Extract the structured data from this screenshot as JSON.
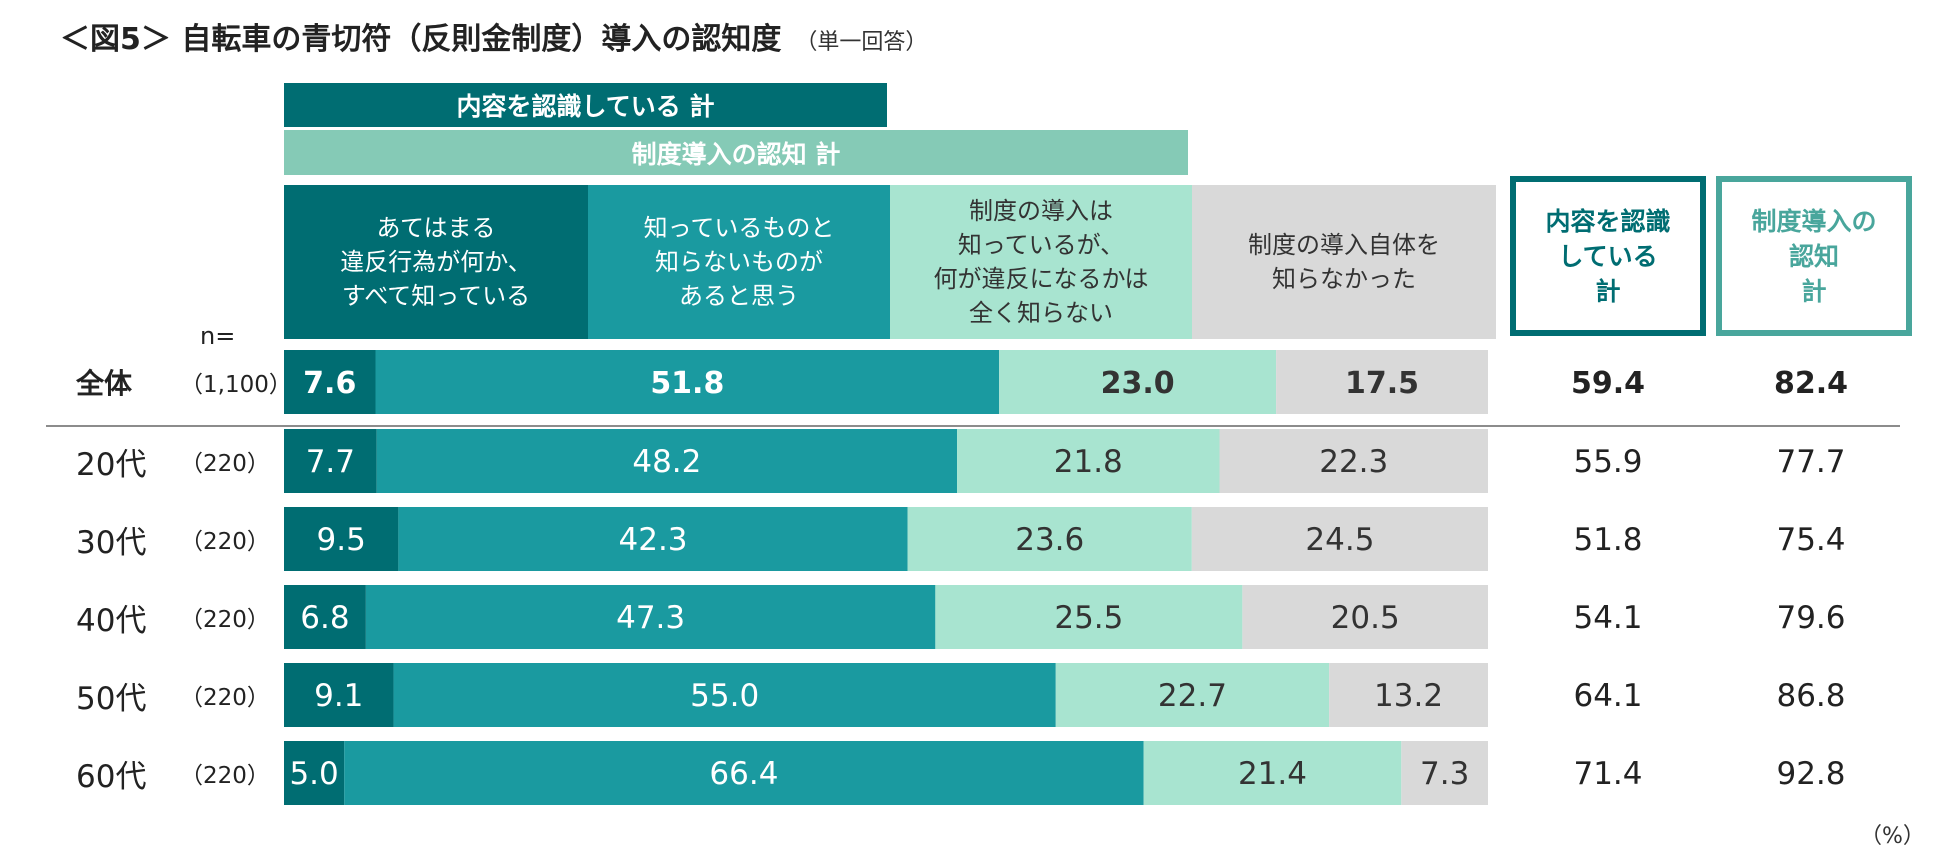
{
  "chart_data": {
    "type": "bar",
    "orientation": "horizontal-stacked-100",
    "title": "＜図5＞ 自転車の青切符（反則金制度）導入の認知度",
    "subtitle": "（単一回答）",
    "unit_label": "（%）",
    "n_label": "n=",
    "group_bands": [
      {
        "label": "内容を認識している 計",
        "spans_segments": [
          0,
          1
        ]
      },
      {
        "label": "制度導入の認知 計",
        "spans_segments": [
          0,
          1,
          2
        ]
      }
    ],
    "segments": [
      {
        "label": "あてはまる\n違反行為が何か、\nすべて知っている",
        "color": "#006d72",
        "text_color": "#ffffff"
      },
      {
        "label": "知っているものと\n知らないものが\nあると思う",
        "color": "#1a9aa0",
        "text_color": "#ffffff"
      },
      {
        "label": "制度の導入は\n知っているが、\n何が違反になるかは\n全く知らない",
        "color": "#a8e4d0",
        "text_color": "#333333"
      },
      {
        "label": "制度の導入自体を\n知らなかった",
        "color": "#d9d9d9",
        "text_color": "#333333"
      }
    ],
    "totals_headers": [
      {
        "label": "内容を認識\nしている\n計",
        "color": "#006d72"
      },
      {
        "label": "制度導入の\n認知\n計",
        "color": "#49a69c"
      }
    ],
    "rows": [
      {
        "label": "全体",
        "n": "（1,100）",
        "values": [
          7.6,
          51.8,
          23.0,
          17.5
        ],
        "totals": [
          59.4,
          82.4
        ],
        "bold": true
      },
      {
        "label": "20代",
        "n": "（220）",
        "values": [
          7.7,
          48.2,
          21.8,
          22.3
        ],
        "totals": [
          55.9,
          77.7
        ],
        "bold": false
      },
      {
        "label": "30代",
        "n": "（220）",
        "values": [
          9.5,
          42.3,
          23.6,
          24.5
        ],
        "totals": [
          51.8,
          75.4
        ],
        "bold": false
      },
      {
        "label": "40代",
        "n": "（220）",
        "values": [
          6.8,
          47.3,
          25.5,
          20.5
        ],
        "totals": [
          54.1,
          79.6
        ],
        "bold": false
      },
      {
        "label": "50代",
        "n": "（220）",
        "values": [
          9.1,
          55.0,
          22.7,
          13.2
        ],
        "totals": [
          64.1,
          86.8
        ],
        "bold": false
      },
      {
        "label": "60代",
        "n": "（220）",
        "values": [
          5.0,
          66.4,
          21.4,
          7.3
        ],
        "totals": [
          71.4,
          92.8
        ],
        "bold": false
      }
    ],
    "xlim": [
      0,
      100
    ]
  }
}
